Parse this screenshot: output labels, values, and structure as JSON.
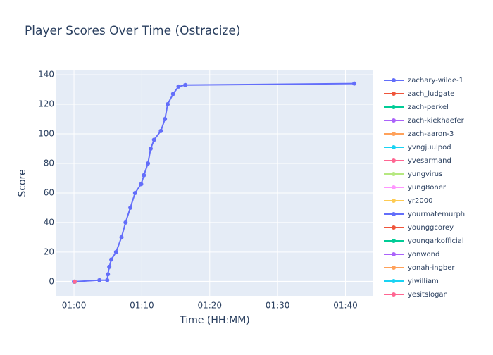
{
  "chart_data": {
    "type": "line",
    "title": "Player Scores Over Time (Ostracize)",
    "x_label": "Time (HH:MM)",
    "y_label": "Score",
    "xlim": [
      57.4,
      104.1
    ],
    "xticks": [
      {
        "value": 60,
        "label": "01:00"
      },
      {
        "value": 70,
        "label": "01:10"
      },
      {
        "value": 80,
        "label": "01:20"
      },
      {
        "value": 90,
        "label": "01:30"
      },
      {
        "value": 100,
        "label": "01:40"
      }
    ],
    "ylim": [
      -9.6,
      142.9
    ],
    "yticks": [
      0,
      20,
      40,
      60,
      80,
      100,
      120,
      140
    ],
    "grid": true,
    "legend": "right",
    "series": [
      {
        "name": "zachary-wilde-1",
        "color": "#636efa",
        "x": [
          60.0,
          63.75,
          64.9,
          65.0,
          65.2,
          65.5,
          66.2,
          67.0,
          67.6,
          68.3,
          69.0,
          69.9,
          70.3,
          70.9,
          71.3,
          71.8,
          72.8,
          73.4,
          73.8,
          74.6,
          75.4,
          76.4,
          101.3
        ],
        "values": [
          0,
          1,
          1,
          5,
          10,
          15,
          20,
          30,
          40,
          50,
          60,
          66,
          72,
          80,
          90,
          96,
          102,
          110,
          120,
          127,
          132,
          133,
          134
        ]
      },
      {
        "name": "zach_ludgate",
        "color": "#EF553B",
        "x": [
          60.1
        ],
        "values": [
          0
        ]
      },
      {
        "name": "zach-perkel",
        "color": "#00cc96",
        "x": [
          60.1
        ],
        "values": [
          0
        ]
      },
      {
        "name": "zach-kiekhaefer",
        "color": "#ab63fa",
        "x": [
          60.1
        ],
        "values": [
          0
        ]
      },
      {
        "name": "zach-aaron-3",
        "color": "#FFA15A",
        "x": [
          60.1
        ],
        "values": [
          0
        ]
      },
      {
        "name": "yvngjuulpod",
        "color": "#19d3f3",
        "x": [
          60.1
        ],
        "values": [
          0
        ]
      },
      {
        "name": "yvesarmand",
        "color": "#FF6692",
        "x": [
          60.1
        ],
        "values": [
          0
        ]
      },
      {
        "name": "yungvirus",
        "color": "#B6E880",
        "x": [
          60.1
        ],
        "values": [
          0
        ]
      },
      {
        "name": "yung8oner",
        "color": "#FF97FF",
        "x": [
          60.1
        ],
        "values": [
          0
        ]
      },
      {
        "name": "yr2000",
        "color": "#FECB52",
        "x": [
          60.1
        ],
        "values": [
          0
        ]
      },
      {
        "name": "yourmatemurph",
        "color": "#636efa",
        "x": [
          60.1
        ],
        "values": [
          0
        ]
      },
      {
        "name": "younggcorey",
        "color": "#EF553B",
        "x": [
          60.1
        ],
        "values": [
          0
        ]
      },
      {
        "name": "youngarkofficial",
        "color": "#00cc96",
        "x": [
          60.1
        ],
        "values": [
          0
        ]
      },
      {
        "name": "yonwond",
        "color": "#ab63fa",
        "x": [
          60.1
        ],
        "values": [
          0
        ]
      },
      {
        "name": "yonah-ingber",
        "color": "#FFA15A",
        "x": [
          60.1
        ],
        "values": [
          0
        ]
      },
      {
        "name": "yiwilliam",
        "color": "#19d3f3",
        "x": [
          60.1
        ],
        "values": [
          0
        ]
      },
      {
        "name": "yesitslogan",
        "color": "#FF6692",
        "x": [
          60.1
        ],
        "values": [
          0
        ]
      }
    ]
  }
}
